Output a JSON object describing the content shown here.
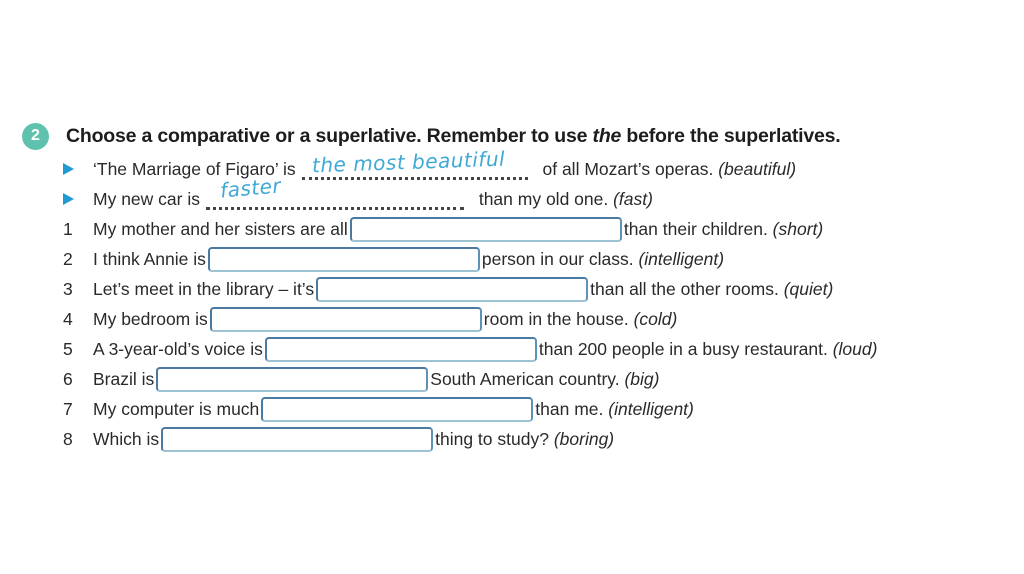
{
  "colors": {
    "badge": "#5fc2ae",
    "bullet_blue": "#1f9ad3",
    "handwriting_blue": "#3fa9d5",
    "box_border": "#4a7aa2",
    "text": "#2a2a2a"
  },
  "exercise": {
    "number": "2",
    "title": {
      "pre": "Choose a comparative or a superlative. Remember to use ",
      "italic": "the",
      "post": " before the superlatives."
    },
    "examples": [
      {
        "text_before": "‘The Marriage of Figaro’ is",
        "answer": "the most beautiful",
        "text_after": " of all Mozart’s operas. ",
        "hint": "(beautiful)"
      },
      {
        "text_before": "My new car is",
        "answer": "faster",
        "text_after": " than my old one. ",
        "hint": "(fast)"
      }
    ],
    "items": [
      {
        "num": "1",
        "text_before": "My mother and her sisters are all",
        "value": "",
        "text_after": "than their children. ",
        "hint": "(short)"
      },
      {
        "num": "2",
        "text_before": "I think Annie is",
        "value": "",
        "text_after": "person in our class. ",
        "hint": "(intelligent)"
      },
      {
        "num": "3",
        "text_before": "Let’s meet in the library – it’s",
        "value": "",
        "text_after": "than all the other rooms. ",
        "hint": "(quiet)"
      },
      {
        "num": "4",
        "text_before": "My bedroom is",
        "value": "",
        "text_after": "room in the house. ",
        "hint": "(cold)"
      },
      {
        "num": "5",
        "text_before": "A 3-year-old’s voice is",
        "value": "",
        "text_after": "than 200 people in a busy restaurant. ",
        "hint": "(loud)"
      },
      {
        "num": "6",
        "text_before": "Brazil is",
        "value": "",
        "text_after": "South American country. ",
        "hint": "(big)"
      },
      {
        "num": "7",
        "text_before": "My computer is much",
        "value": "",
        "text_after": "than me. ",
        "hint": "(intelligent)"
      },
      {
        "num": "8",
        "text_before": "Which is",
        "value": "",
        "text_after": "thing to study? ",
        "hint": "(boring)"
      }
    ]
  }
}
